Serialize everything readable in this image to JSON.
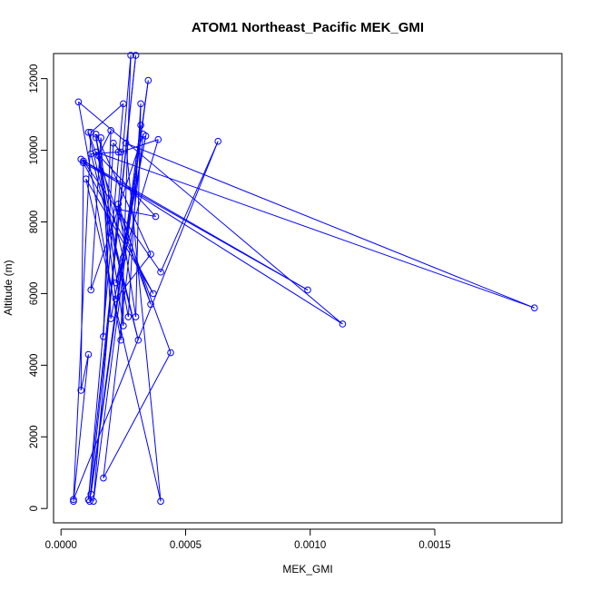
{
  "chart_data": {
    "type": "scatter",
    "title": "ATOM1 Northeast_Pacific MEK_GMI",
    "xlabel": "MEK_GMI",
    "ylabel": "Altitude (m)",
    "xlim": [
      -3e-05,
      0.00201
    ],
    "ylim": [
      -400,
      12700
    ],
    "x_ticks": [
      0.0,
      0.0005,
      0.001,
      0.0015
    ],
    "x_tick_labels": [
      "0.0000",
      "0.0005",
      "0.0010",
      "0.0015"
    ],
    "y_ticks": [
      0,
      2000,
      4000,
      6000,
      8000,
      10000,
      12000
    ],
    "y_tick_labels": [
      "0",
      "2000",
      "4000",
      "6000",
      "8000",
      "10000",
      "12000"
    ],
    "series_color": "#0000ff",
    "connected": true,
    "marker": "open-circle",
    "points": [
      {
        "x": 5e-05,
        "y": 200
      },
      {
        "x": 0.00011,
        "y": 4300
      },
      {
        "x": 8e-05,
        "y": 3300
      },
      {
        "x": 9e-05,
        "y": 9700
      },
      {
        "x": 0.0004,
        "y": 6600
      },
      {
        "x": 0.00063,
        "y": 10250
      },
      {
        "x": 5e-05,
        "y": 250
      },
      {
        "x": 0.00012,
        "y": 10500
      },
      {
        "x": 0.00025,
        "y": 11300
      },
      {
        "x": 0.00011,
        "y": 250
      },
      {
        "x": 0.0003,
        "y": 12650
      },
      {
        "x": 0.000115,
        "y": 200
      },
      {
        "x": 0.00032,
        "y": 10700
      },
      {
        "x": 0.00012,
        "y": 400
      },
      {
        "x": 0.00035,
        "y": 11950
      },
      {
        "x": 0.00013,
        "y": 200
      },
      {
        "x": 0.00028,
        "y": 12650
      },
      {
        "x": 0.00024,
        "y": 4700
      },
      {
        "x": 7e-05,
        "y": 11350
      },
      {
        "x": 0.00113,
        "y": 5150
      },
      {
        "x": 8e-05,
        "y": 9750
      },
      {
        "x": 0.00099,
        "y": 6100
      },
      {
        "x": 9e-05,
        "y": 9650
      },
      {
        "x": 0.00037,
        "y": 6000
      },
      {
        "x": 0.0001,
        "y": 9200
      },
      {
        "x": 0.0004,
        "y": 200
      },
      {
        "x": 0.00026,
        "y": 10200
      },
      {
        "x": 0.0019,
        "y": 5600
      },
      {
        "x": 0.00014,
        "y": 9950
      },
      {
        "x": 0.00038,
        "y": 8150
      },
      {
        "x": 0.00023,
        "y": 8350
      },
      {
        "x": 0.00044,
        "y": 4350
      },
      {
        "x": 0.00017,
        "y": 850
      },
      {
        "x": 0.00033,
        "y": 10450
      },
      {
        "x": 0.00012,
        "y": 6100
      },
      {
        "x": 0.00016,
        "y": 10350
      },
      {
        "x": 0.0002,
        "y": 5300
      },
      {
        "x": 0.00034,
        "y": 10400
      },
      {
        "x": 0.00022,
        "y": 6300
      },
      {
        "x": 0.00039,
        "y": 10300
      },
      {
        "x": 0.00024,
        "y": 9950
      },
      {
        "x": 0.00021,
        "y": 10200
      },
      {
        "x": 0.00017,
        "y": 4800
      },
      {
        "x": 0.0002,
        "y": 10550
      },
      {
        "x": 0.00015,
        "y": 9850
      },
      {
        "x": 0.00022,
        "y": 5850
      },
      {
        "x": 0.00036,
        "y": 7100
      },
      {
        "x": 0.00014,
        "y": 10450
      },
      {
        "x": 0.00025,
        "y": 5100
      },
      {
        "x": 0.00025,
        "y": 7000
      },
      {
        "x": 0.00014,
        "y": 10350
      },
      {
        "x": 0.00027,
        "y": 5350
      },
      {
        "x": 0.00032,
        "y": 11300
      },
      {
        "x": 0.0003,
        "y": 5350
      },
      {
        "x": 0.00023,
        "y": 8500
      },
      {
        "x": 0.00036,
        "y": 5700
      },
      {
        "x": 0.00011,
        "y": 10500
      },
      {
        "x": 0.00031,
        "y": 4700
      },
      {
        "x": 0.00012,
        "y": 9900
      },
      {
        "x": 0.00023,
        "y": 9950
      }
    ]
  }
}
